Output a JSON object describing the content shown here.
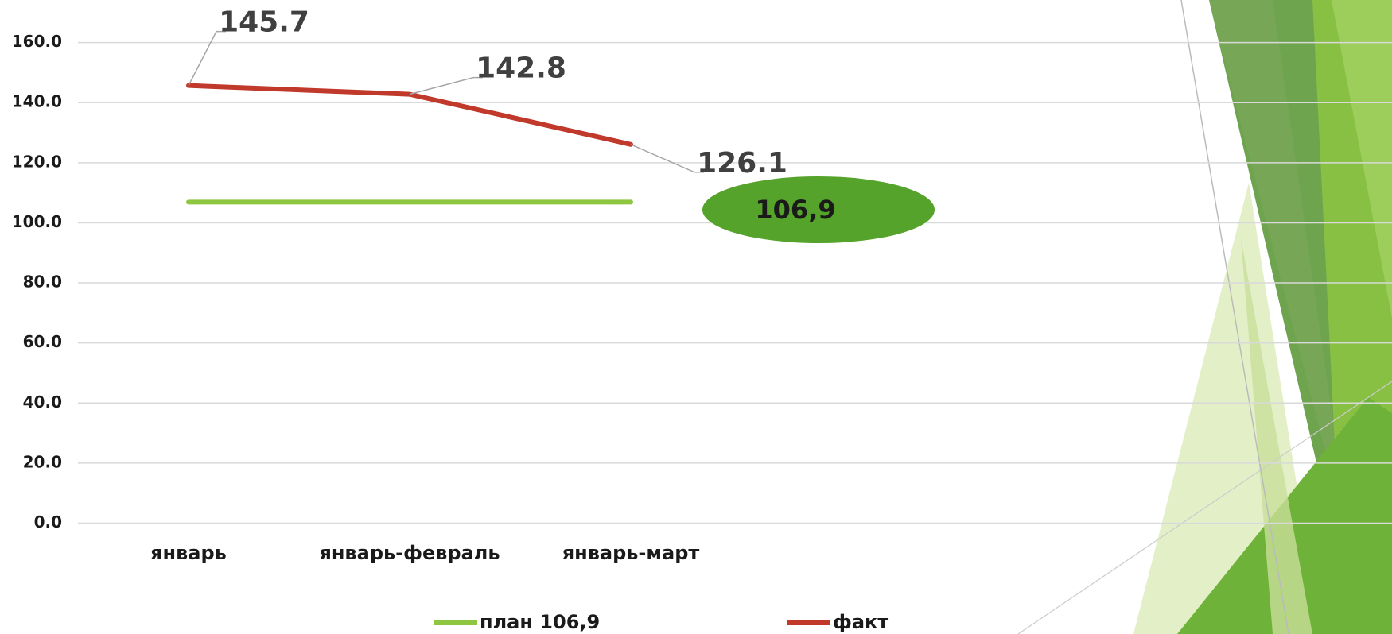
{
  "chart_data": {
    "type": "line",
    "categories": [
      "январь",
      "январь-февраль",
      "январь-март",
      null,
      null,
      null
    ],
    "series": [
      {
        "name": "план 106,9",
        "color": "#8dc63f",
        "values": [
          106.9,
          106.9,
          106.9,
          null,
          null,
          null
        ]
      },
      {
        "name": "факт",
        "color": "#c0392b",
        "values": [
          145.7,
          142.8,
          126.1,
          null,
          null,
          null
        ]
      }
    ],
    "annotation": "106,9",
    "ylim": [
      0,
      160
    ],
    "yticks": [
      {
        "value": 0,
        "label": "0.0"
      },
      {
        "value": 20,
        "label": "20.0"
      },
      {
        "value": 40,
        "label": "40.0"
      },
      {
        "value": 60,
        "label": "60.0"
      },
      {
        "value": 80,
        "label": "80.0"
      },
      {
        "value": 100,
        "label": "100.0"
      },
      {
        "value": 120,
        "label": "120.0"
      },
      {
        "value": 140,
        "label": "140.0"
      },
      {
        "value": 160,
        "label": "160.0"
      }
    ],
    "grid": true,
    "legend": "bottom"
  }
}
